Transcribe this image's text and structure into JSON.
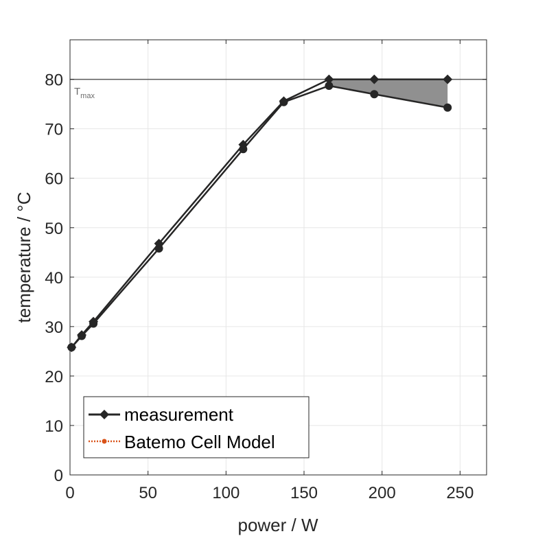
{
  "chart_data": {
    "type": "line",
    "xlabel": "power / W",
    "ylabel": "temperature / °C",
    "xlim": [
      0,
      267
    ],
    "ylim": [
      0,
      88
    ],
    "xticks": [
      0,
      50,
      100,
      150,
      200,
      250
    ],
    "yticks": [
      0,
      10,
      20,
      30,
      40,
      50,
      60,
      70,
      80
    ],
    "grid": true,
    "legend_position": "bottom-left",
    "reference_line": {
      "y": 80,
      "label": "T",
      "label_sub": "max",
      "color": "#595959"
    },
    "shaded_region": {
      "color": "#909090",
      "upper": [
        [
          166,
          80
        ],
        [
          195,
          80
        ],
        [
          242,
          80
        ]
      ],
      "lower": [
        [
          166,
          78.7
        ],
        [
          195,
          77
        ],
        [
          242,
          74.3
        ]
      ]
    },
    "series": [
      {
        "name": "measurement",
        "color": "#262626",
        "marker": "diamond",
        "x": [
          1,
          7.5,
          15,
          57,
          111,
          137,
          166,
          195,
          242
        ],
        "y": [
          25.8,
          28.3,
          31,
          46.8,
          66.8,
          75.6,
          80,
          80,
          80
        ]
      },
      {
        "name": "Batemo Cell Model",
        "color": "#d95319",
        "marker": "dot",
        "x": [
          1,
          7.5,
          15,
          57,
          111,
          137,
          166,
          195,
          242
        ],
        "y": [
          25.8,
          28.1,
          30.6,
          45.8,
          65.9,
          75.4,
          78.7,
          77,
          74.3
        ]
      }
    ],
    "overlay_series": {
      "name": "",
      "color": "#262626",
      "x": [
        1,
        7.5,
        15,
        57,
        111,
        137,
        166,
        195,
        242
      ],
      "y": [
        25.8,
        28.1,
        30.6,
        45.8,
        65.9,
        75.4,
        78.7,
        77,
        74.3
      ]
    }
  }
}
